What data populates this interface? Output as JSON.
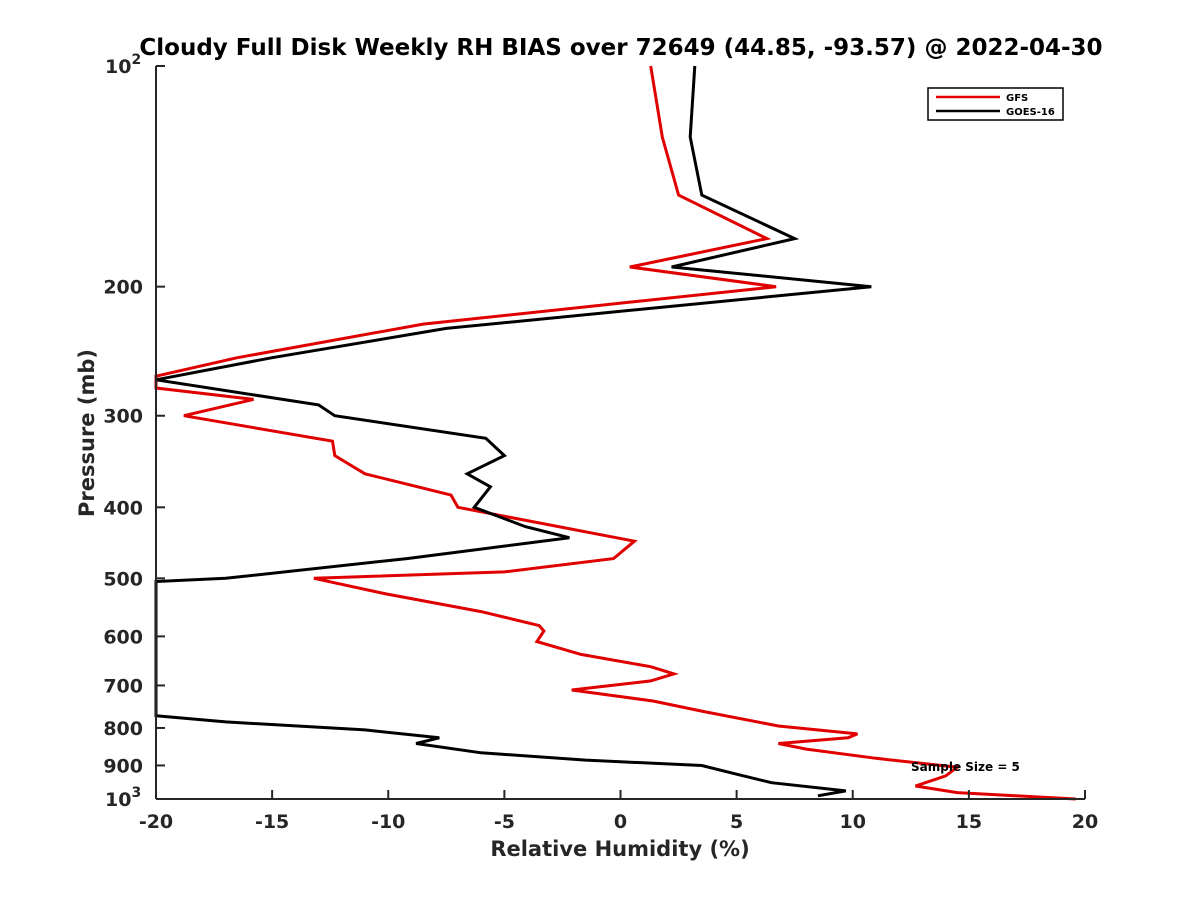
{
  "chart_data": {
    "type": "line",
    "title": "Cloudy Full Disk Weekly RH BIAS over 72649 (44.85, -93.57) @ 2022-04-30",
    "xlabel": "Relative Humidity (%)",
    "ylabel": "Pressure (mb)",
    "xlim": [
      -20,
      20
    ],
    "ylim": [
      100,
      1000
    ],
    "yscale": "log",
    "y_reversed": true,
    "grid": false,
    "legend_position": "top-right",
    "xticks": [
      "-20",
      "-15",
      "-10",
      "-5",
      "0",
      "5",
      "10",
      "15",
      "20"
    ],
    "yticks": [
      {
        "value": 100,
        "base": "10",
        "exp": "2"
      },
      {
        "value": 200,
        "label": "200"
      },
      {
        "value": 300,
        "label": "300"
      },
      {
        "value": 400,
        "label": "400"
      },
      {
        "value": 500,
        "label": "500"
      },
      {
        "value": 600,
        "label": "600"
      },
      {
        "value": 700,
        "label": "700"
      },
      {
        "value": 800,
        "label": "800"
      },
      {
        "value": 900,
        "label": "900"
      },
      {
        "value": 1000,
        "base": "10",
        "exp": "3"
      }
    ],
    "annotation": "Sample Size = 5",
    "series": [
      {
        "name": "GFS",
        "color": "#e00000",
        "points": [
          [
            1.3,
            100
          ],
          [
            1.8,
            125
          ],
          [
            2.5,
            150
          ],
          [
            6.3,
            172
          ],
          [
            0.4,
            188
          ],
          [
            6.7,
            200
          ],
          [
            -8.5,
            225
          ],
          [
            -16.5,
            250
          ],
          [
            -20,
            265
          ],
          [
            -20,
            275
          ],
          [
            -15.8,
            285
          ],
          [
            -18.8,
            300
          ],
          [
            -12.4,
            325
          ],
          [
            -12.3,
            340
          ],
          [
            -11.0,
            360
          ],
          [
            -7.3,
            385
          ],
          [
            -7.0,
            400
          ],
          [
            0.6,
            445
          ],
          [
            -0.3,
            470
          ],
          [
            -5.0,
            490
          ],
          [
            -13.2,
            500
          ],
          [
            -10.1,
            525
          ],
          [
            -6.0,
            555
          ],
          [
            -3.5,
            580
          ],
          [
            -3.3,
            590
          ],
          [
            -3.6,
            610
          ],
          [
            -1.7,
            635
          ],
          [
            1.3,
            660
          ],
          [
            2.3,
            675
          ],
          [
            1.3,
            690
          ],
          [
            -2.1,
            710
          ],
          [
            1.4,
            735
          ],
          [
            3.6,
            760
          ],
          [
            6.8,
            795
          ],
          [
            10.2,
            815
          ],
          [
            9.8,
            825
          ],
          [
            6.8,
            840
          ],
          [
            8.0,
            855
          ],
          [
            11.0,
            880
          ],
          [
            14.5,
            905
          ],
          [
            14.0,
            930
          ],
          [
            12.7,
            960
          ],
          [
            14.5,
            980
          ],
          [
            19.6,
            1000
          ]
        ]
      },
      {
        "name": "GOES-16",
        "color": "#000000",
        "points": [
          [
            3.2,
            100
          ],
          [
            3.0,
            125
          ],
          [
            3.5,
            150
          ],
          [
            7.5,
            172
          ],
          [
            2.2,
            188
          ],
          [
            10.8,
            200
          ],
          [
            -7.5,
            228
          ],
          [
            -15.0,
            250
          ],
          [
            -20,
            268
          ],
          [
            -13.0,
            290
          ],
          [
            -12.3,
            300
          ],
          [
            -5.8,
            322
          ],
          [
            -5.0,
            340
          ],
          [
            -6.6,
            360
          ],
          [
            -5.6,
            375
          ],
          [
            -6.3,
            400
          ],
          [
            -4.1,
            425
          ],
          [
            -2.2,
            440
          ],
          [
            -9.2,
            470
          ],
          [
            -17.0,
            500
          ],
          [
            -20,
            505
          ],
          [
            -20,
            770
          ],
          [
            -17.0,
            785
          ],
          [
            -11.0,
            805
          ],
          [
            -7.8,
            825
          ],
          [
            -8.8,
            840
          ],
          [
            -6.0,
            865
          ],
          [
            -1.5,
            885
          ],
          [
            3.5,
            900
          ],
          [
            5.0,
            925
          ],
          [
            6.5,
            950
          ],
          [
            9.7,
            975
          ],
          [
            8.5,
            990
          ]
        ]
      }
    ]
  }
}
